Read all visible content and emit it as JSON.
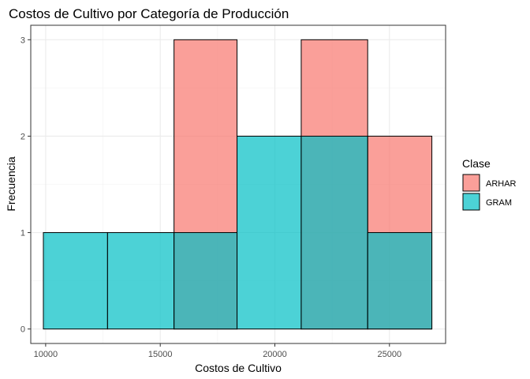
{
  "chart_data": {
    "type": "histogram",
    "title": "Costos de Cultivo por Categoría de Producción",
    "xlabel": "Costos de Cultivo",
    "ylabel": "Frecuencia",
    "xlim": [
      9350,
      27450
    ],
    "ylim": [
      -0.15,
      3.15
    ],
    "x_ticks": [
      10000,
      15000,
      20000,
      25000
    ],
    "y_ticks": [
      0,
      1,
      2,
      3
    ],
    "grid": true,
    "legend_position": "right",
    "legend_title": "Clase",
    "series": [
      {
        "name": "ARHAR",
        "color": "#f8766d",
        "bins": [
          {
            "x0": 15600,
            "x1": 18350,
            "count": 3
          },
          {
            "x0": 21150,
            "x1": 24050,
            "count": 3
          },
          {
            "x0": 24050,
            "x1": 26850,
            "count": 2
          }
        ]
      },
      {
        "name": "GRAM",
        "color": "#00bfc4",
        "bins": [
          {
            "x0": 9900,
            "x1": 12700,
            "count": 1
          },
          {
            "x0": 12700,
            "x1": 15600,
            "count": 1
          },
          {
            "x0": 15600,
            "x1": 18350,
            "count": 1
          },
          {
            "x0": 18350,
            "x1": 21150,
            "count": 2
          },
          {
            "x0": 21150,
            "x1": 24050,
            "count": 2
          },
          {
            "x0": 24050,
            "x1": 26850,
            "count": 1
          }
        ]
      }
    ]
  }
}
